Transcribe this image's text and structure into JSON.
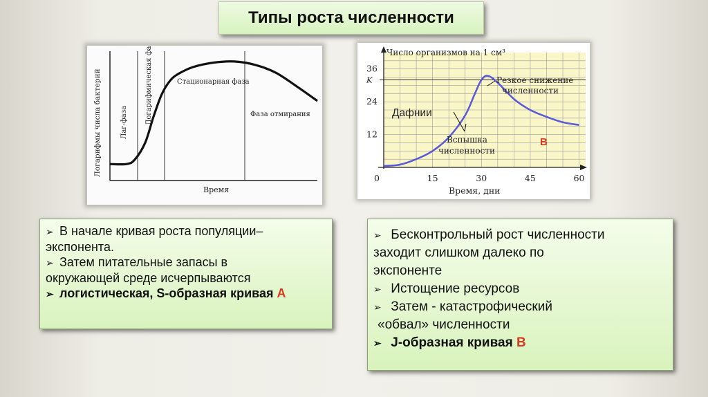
{
  "title": "Типы роста численности",
  "chart_data": [
    {
      "type": "line",
      "title": "",
      "xlabel": "Время",
      "ylabel": "Логарифмы числа бактерий",
      "phases": [
        "Лаг-фаза",
        "Логарифмическая фаза",
        "Стационарная фаза",
        "Фаза отмирания"
      ],
      "series": [
        {
          "x": [
            0,
            0.08,
            0.12,
            0.17,
            0.21,
            0.25,
            0.29,
            0.33,
            0.4,
            0.5,
            0.6,
            0.7,
            0.8,
            0.9,
            1.0
          ],
          "y": [
            0.06,
            0.06,
            0.1,
            0.25,
            0.48,
            0.68,
            0.8,
            0.86,
            0.92,
            0.96,
            0.97,
            0.94,
            0.87,
            0.75,
            0.62
          ]
        }
      ],
      "grid": false
    },
    {
      "type": "line",
      "title": "",
      "xlabel": "Время, дни",
      "ylabel": "Число организмов на 1 см³",
      "x_ticks": [
        "0",
        "15",
        "30",
        "45",
        "60"
      ],
      "y_ticks": [
        "12",
        "24",
        "K",
        "36"
      ],
      "xlim": [
        0,
        62
      ],
      "ylim": [
        0,
        42
      ],
      "series": [
        {
          "x": [
            0,
            5,
            10,
            15,
            20,
            25,
            28,
            30,
            32,
            35,
            40,
            45,
            50,
            55,
            60
          ],
          "y": [
            0.5,
            1,
            3,
            6,
            11,
            19,
            27,
            32,
            33.5,
            31,
            25,
            21,
            18.5,
            16.5,
            15.5
          ]
        }
      ],
      "annotations": {
        "organism": "Дафнии",
        "peak": "Вспышка численности",
        "decline": "Резкое снижение численности",
        "label": "В"
      },
      "grid": true
    }
  ],
  "left_text": {
    "line1": "В начале кривая роста популяции–",
    "line2": "экспонента.",
    "line3": "Затем питательные запасы в",
    "line4": "окружающей среде исчерпываются",
    "line5": "логистическая,  S-образная кривая",
    "letter": "А"
  },
  "right_text": {
    "line1": "Бесконтрольный рост численности",
    "line2": "заходит слишком далеко по",
    "line3": "экспоненте",
    "line4": "Истощение ресурсов",
    "line5": "Затем - катастрофический",
    "line6": "«обвал» численности",
    "line7": "J-образная кривая",
    "letter": "В"
  },
  "colors": {
    "accent_letter": "#d63b1f",
    "curve_b": "#5b5bd6",
    "chart_b_bg": "#fbf6c8",
    "title_bg": "#d8f3bf",
    "box_bg": "#e4f7cf"
  }
}
